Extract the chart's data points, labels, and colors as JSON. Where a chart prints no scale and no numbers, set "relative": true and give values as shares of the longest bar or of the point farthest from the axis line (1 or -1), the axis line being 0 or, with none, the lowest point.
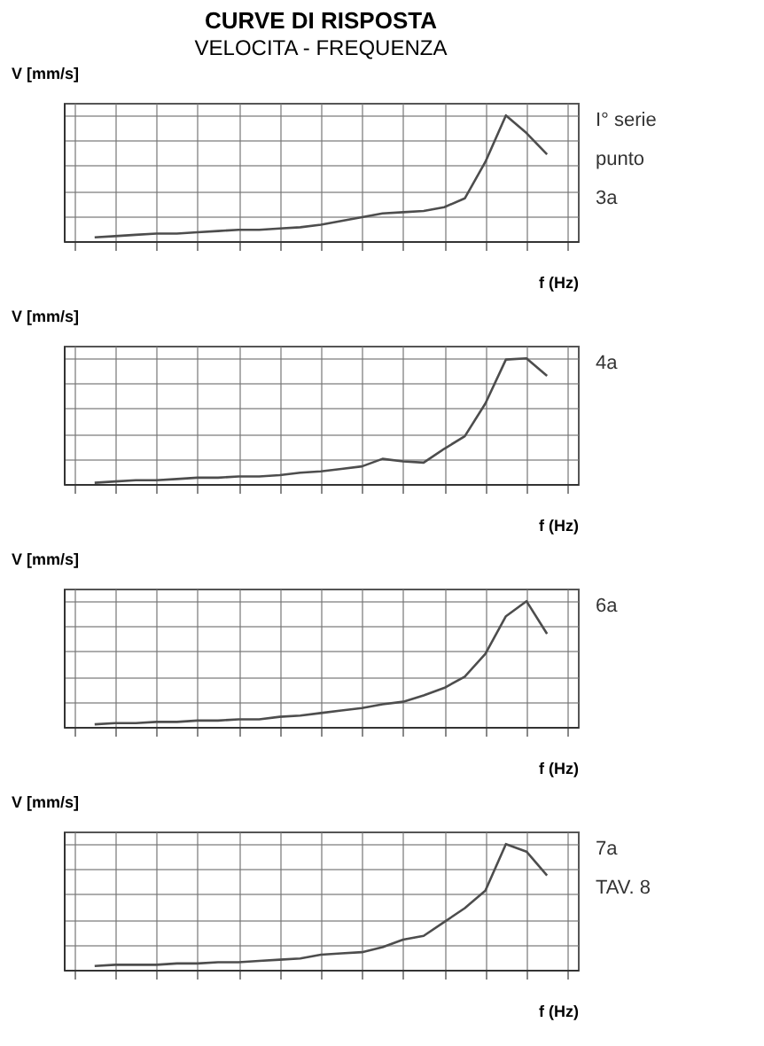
{
  "chart_data": [
    {
      "type": "line",
      "title": "CURVE DI RISPOSTA",
      "subtitle": "VELOCITA - FREQUENZA",
      "xlabel": "f (Hz)",
      "ylabel": "V [mm/s]",
      "relative": true,
      "grid": true,
      "color": "#4d4d4d",
      "annotations": [
        "I° serie",
        "punto",
        "3a"
      ],
      "categories": [
        null,
        null,
        null,
        null,
        null,
        null,
        null,
        null,
        null,
        null,
        null,
        null,
        null,
        null,
        null,
        null,
        null,
        null,
        null,
        null,
        null,
        null,
        null,
        null,
        null
      ],
      "values": [
        null,
        0.03,
        0.04,
        0.05,
        0.06,
        0.06,
        0.07,
        0.08,
        0.09,
        0.09,
        0.1,
        0.11,
        0.13,
        0.16,
        0.19,
        0.22,
        0.23,
        0.24,
        0.27,
        0.34,
        0.63,
        1,
        0.86,
        0.69,
        null
      ]
    },
    {
      "type": "line",
      "xlabel": "f (Hz)",
      "ylabel": "V [mm/s]",
      "relative": true,
      "grid": true,
      "color": "#4d4d4d",
      "annotations": [
        "4a"
      ],
      "categories": [
        null,
        null,
        null,
        null,
        null,
        null,
        null,
        null,
        null,
        null,
        null,
        null,
        null,
        null,
        null,
        null,
        null,
        null,
        null,
        null,
        null,
        null,
        null,
        null,
        null
      ],
      "values": [
        null,
        0.01,
        0.02,
        0.03,
        0.03,
        0.04,
        0.05,
        0.05,
        0.06,
        0.06,
        0.07,
        0.09,
        0.1,
        0.12,
        0.14,
        0.2,
        0.18,
        0.17,
        0.28,
        0.38,
        0.64,
        0.99,
        1,
        0.86,
        null
      ]
    },
    {
      "type": "line",
      "xlabel": "f (Hz)",
      "ylabel": "V [mm/s]",
      "relative": true,
      "grid": true,
      "color": "#4d4d4d",
      "annotations": [
        "6a"
      ],
      "categories": [
        null,
        null,
        null,
        null,
        null,
        null,
        null,
        null,
        null,
        null,
        null,
        null,
        null,
        null,
        null,
        null,
        null,
        null,
        null,
        null,
        null,
        null,
        null,
        null,
        null
      ],
      "values": [
        null,
        0.02,
        0.03,
        0.03,
        0.04,
        0.04,
        0.05,
        0.05,
        0.06,
        0.06,
        0.08,
        0.09,
        0.11,
        0.13,
        0.15,
        0.18,
        0.2,
        0.25,
        0.31,
        0.4,
        0.58,
        0.88,
        1,
        0.74,
        null
      ]
    },
    {
      "type": "line",
      "xlabel": "f (Hz)",
      "ylabel": "V [mm/s]",
      "relative": true,
      "grid": true,
      "color": "#4d4d4d",
      "annotations": [
        "7a",
        "TAV. 8"
      ],
      "categories": [
        null,
        null,
        null,
        null,
        null,
        null,
        null,
        null,
        null,
        null,
        null,
        null,
        null,
        null,
        null,
        null,
        null,
        null,
        null,
        null,
        null,
        null,
        null,
        null,
        null
      ],
      "values": [
        null,
        0.03,
        0.04,
        0.04,
        0.04,
        0.05,
        0.05,
        0.06,
        0.06,
        0.07,
        0.08,
        0.09,
        0.12,
        0.13,
        0.14,
        0.18,
        0.24,
        0.27,
        0.38,
        0.49,
        0.63,
        1,
        0.94,
        0.75,
        null
      ]
    }
  ]
}
